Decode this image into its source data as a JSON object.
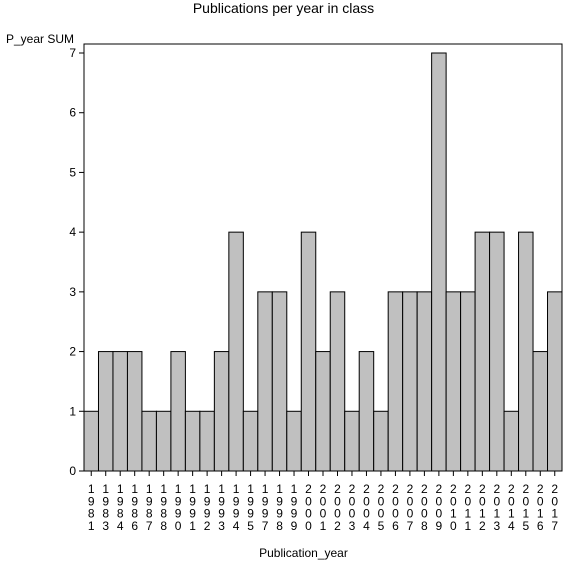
{
  "chart_data": {
    "type": "bar",
    "title": "Publications per year in class",
    "ylabel": "P_year SUM",
    "xlabel": "Publication_year",
    "categories": [
      "1981",
      "1983",
      "1984",
      "1986",
      "1987",
      "1988",
      "1990",
      "1991",
      "1992",
      "1993",
      "1994",
      "1995",
      "1997",
      "1998",
      "1999",
      "2000",
      "2001",
      "2002",
      "2003",
      "2004",
      "2005",
      "2006",
      "2007",
      "2008",
      "2009",
      "2010",
      "2011",
      "2012",
      "2013",
      "2014",
      "2015",
      "2016",
      "2017"
    ],
    "values": [
      1,
      2,
      2,
      2,
      1,
      1,
      2,
      1,
      1,
      2,
      4,
      1,
      3,
      3,
      1,
      4,
      2,
      3,
      1,
      2,
      1,
      3,
      3,
      3,
      7,
      3,
      3,
      4,
      4,
      1,
      4,
      2,
      3
    ],
    "ylim": [
      0,
      7
    ],
    "yticks": [
      "0",
      "1",
      "2",
      "3",
      "4",
      "5",
      "6",
      "7"
    ],
    "bar_color": "#c0c0c0",
    "grid": false,
    "legend": "none"
  }
}
